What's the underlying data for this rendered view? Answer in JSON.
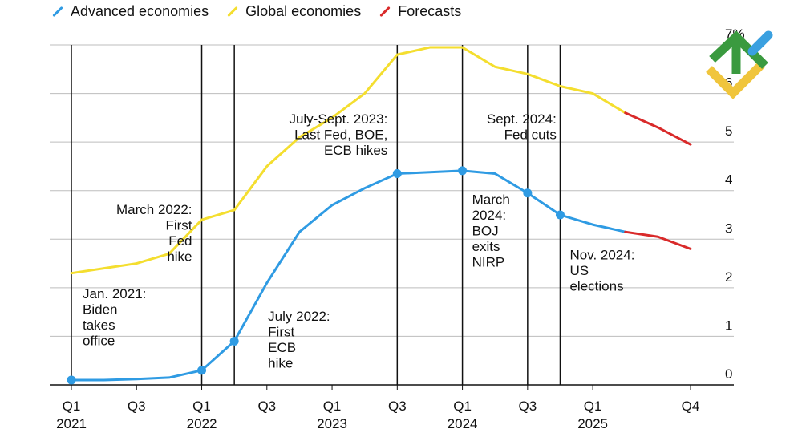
{
  "legend": {
    "advanced": "Advanced economies",
    "global": "Global economies",
    "forecasts": "Forecasts"
  },
  "colors": {
    "advanced": "#2f9be3",
    "global": "#f4de2f",
    "forecasts": "#d92a2a",
    "grid": "#bdbdbd",
    "event_line": "#111111"
  },
  "chart_data": {
    "type": "line",
    "title": "",
    "xlabel": "",
    "ylabel": "",
    "ylim": [
      0,
      7
    ],
    "yticks": [
      "0",
      "1",
      "2",
      "3",
      "4",
      "5",
      "6",
      "7%"
    ],
    "x_range": [
      0,
      19
    ],
    "x_ticks": [
      {
        "x": 0,
        "label": "Q1",
        "year": "2021"
      },
      {
        "x": 2,
        "label": "Q3",
        "year": ""
      },
      {
        "x": 4,
        "label": "Q1",
        "year": "2022"
      },
      {
        "x": 6,
        "label": "Q3",
        "year": ""
      },
      {
        "x": 8,
        "label": "Q1",
        "year": "2023"
      },
      {
        "x": 10,
        "label": "Q3",
        "year": ""
      },
      {
        "x": 12,
        "label": "Q1",
        "year": "2024"
      },
      {
        "x": 14,
        "label": "Q3",
        "year": ""
      },
      {
        "x": 16,
        "label": "Q1",
        "year": "2025"
      },
      {
        "x": 19,
        "label": "Q4",
        "year": ""
      }
    ],
    "series": [
      {
        "name": "Global economies",
        "color": "#f4de2f",
        "x": [
          0,
          1,
          2,
          3,
          4,
          5,
          6,
          7,
          8,
          9,
          10,
          11,
          12,
          13,
          14,
          15,
          16,
          17
        ],
        "values": [
          2.3,
          2.4,
          2.5,
          2.7,
          3.4,
          3.6,
          4.5,
          5.1,
          5.5,
          6.0,
          6.8,
          6.95,
          6.95,
          6.55,
          6.4,
          6.15,
          6.0,
          5.6
        ],
        "forecast_x": [
          17,
          18,
          19
        ],
        "forecast_values": [
          5.6,
          5.3,
          4.95
        ]
      },
      {
        "name": "Advanced economies",
        "color": "#2f9be3",
        "x": [
          0,
          1,
          2,
          3,
          4,
          5,
          6,
          7,
          8,
          9,
          10,
          11,
          12,
          13,
          14,
          15,
          16,
          17
        ],
        "values": [
          0.1,
          0.1,
          0.12,
          0.15,
          0.3,
          0.9,
          2.1,
          3.15,
          3.7,
          4.05,
          4.35,
          4.38,
          4.41,
          4.35,
          3.95,
          3.5,
          3.3,
          3.15
        ],
        "forecast_x": [
          17,
          18,
          19
        ],
        "forecast_values": [
          3.15,
          3.05,
          2.8
        ],
        "marker_x": [
          0,
          4,
          5,
          10,
          12,
          14,
          15
        ]
      }
    ],
    "events": [
      {
        "x": 0,
        "lines": [
          "Jan. 2021:",
          "Biden",
          "takes",
          "office"
        ],
        "align": "start",
        "dx": 14,
        "y": 1.78
      },
      {
        "x": 4,
        "lines": [
          "March 2022:",
          "First",
          "Fed",
          "hike"
        ],
        "align": "end",
        "dx": -12,
        "y": 3.52
      },
      {
        "x": 5,
        "lines": [
          "July 2022:",
          "First",
          "ECB",
          "hike"
        ],
        "align": "start",
        "dx": 42,
        "y": 1.32
      },
      {
        "x": 10,
        "lines": [
          "July-Sept. 2023:",
          "Last Fed, BOE,",
          "ECB hikes"
        ],
        "align": "end",
        "dx": -12,
        "y": 5.38
      },
      {
        "x": 12,
        "lines": [
          "March",
          "2024:",
          "BOJ",
          "exits",
          "NIRP"
        ],
        "align": "start",
        "dx": 12,
        "y": 3.72
      },
      {
        "x": 14,
        "lines": [
          "Sept. 2024:",
          "Fed cuts"
        ],
        "align": "end",
        "dx": 36,
        "y": 5.38
      },
      {
        "x": 15,
        "lines": [
          "Nov. 2024:",
          "US",
          "elections"
        ],
        "align": "start",
        "dx": 12,
        "y": 2.58
      }
    ]
  }
}
